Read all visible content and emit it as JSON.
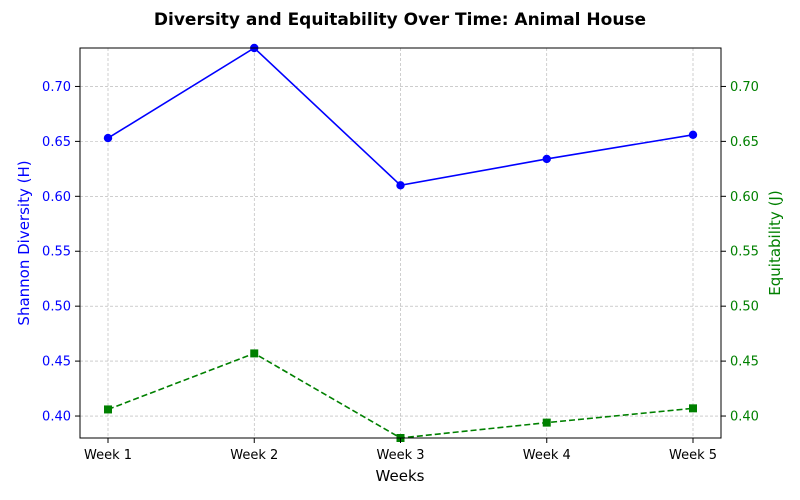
{
  "chart_data": {
    "type": "line",
    "title": "Diversity and Equitability Over Time: Animal House",
    "xlabel": "Weeks",
    "categories": [
      "Week 1",
      "Week 2",
      "Week 3",
      "Week 4",
      "Week 5"
    ],
    "grid": true,
    "axes": {
      "left": {
        "label": "Shannon Diversity (H)",
        "color": "#0000ff",
        "ylim": [
          0.38,
          0.735
        ],
        "ticks": [
          "0.40",
          "0.45",
          "0.50",
          "0.55",
          "0.60",
          "0.65",
          "0.70"
        ]
      },
      "right": {
        "label": "Equitability (J)",
        "color": "#008000",
        "ylim": [
          0.38,
          0.735
        ],
        "ticks": [
          "0.40",
          "0.45",
          "0.50",
          "0.55",
          "0.60",
          "0.65",
          "0.70"
        ]
      }
    },
    "series": [
      {
        "axis": "left",
        "color": "#0000ff",
        "marker": "circle",
        "linestyle": "solid",
        "values": [
          0.653,
          0.735,
          0.61,
          0.634,
          0.656
        ]
      },
      {
        "axis": "right",
        "color": "#008000",
        "marker": "square",
        "linestyle": "dashed",
        "values": [
          0.406,
          0.457,
          0.38,
          0.394,
          0.407
        ]
      }
    ]
  }
}
